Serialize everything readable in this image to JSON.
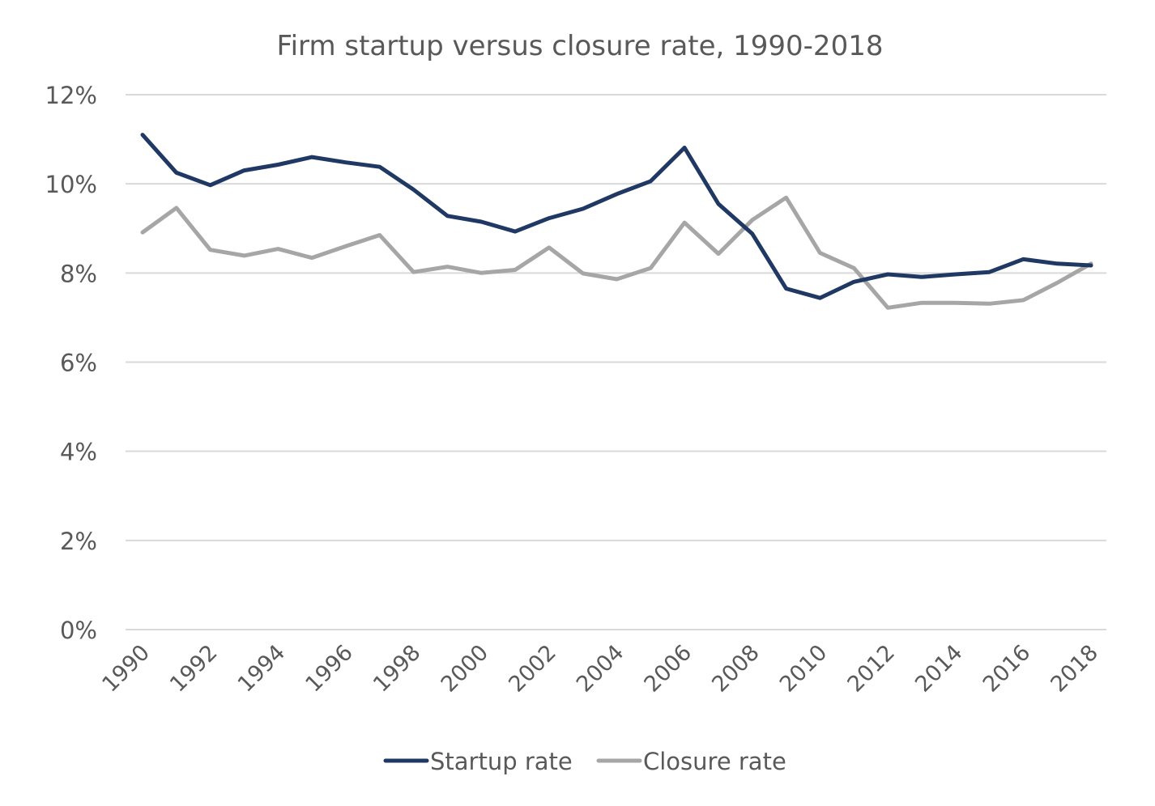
{
  "chart_data": {
    "type": "line",
    "title": "Firm startup versus closure rate, 1990-2018",
    "xlabel": "",
    "ylabel": "",
    "x": [
      1990,
      1991,
      1992,
      1993,
      1994,
      1995,
      1996,
      1997,
      1998,
      1999,
      2000,
      2001,
      2002,
      2003,
      2004,
      2005,
      2006,
      2007,
      2008,
      2009,
      2010,
      2011,
      2012,
      2013,
      2014,
      2015,
      2016,
      2017,
      2018
    ],
    "x_tick_labels": [
      "1990",
      "1992",
      "1994",
      "1996",
      "1998",
      "2000",
      "2002",
      "2004",
      "2006",
      "2008",
      "2010",
      "2012",
      "2014",
      "2016",
      "2018"
    ],
    "ylim": [
      0,
      12
    ],
    "y_ticks": [
      0,
      2,
      4,
      6,
      8,
      10,
      12
    ],
    "y_tick_labels": [
      "0%",
      "2%",
      "4%",
      "6%",
      "8%",
      "10%",
      "12%"
    ],
    "grid": true,
    "legend_position": "bottom",
    "series": [
      {
        "name": "Startup rate",
        "color": "#1f3864",
        "values": [
          11.1,
          10.25,
          9.97,
          10.3,
          10.43,
          10.6,
          10.48,
          10.38,
          9.87,
          9.28,
          9.15,
          8.93,
          9.23,
          9.44,
          9.77,
          10.06,
          10.81,
          9.55,
          8.88,
          7.65,
          7.44,
          7.8,
          7.97,
          7.91,
          7.97,
          8.02,
          8.31,
          8.21,
          8.17
        ]
      },
      {
        "name": "Closure rate",
        "color": "#a6a6a6",
        "values": [
          8.91,
          9.46,
          8.52,
          8.39,
          8.54,
          8.34,
          8.6,
          8.85,
          8.02,
          8.14,
          8.0,
          8.07,
          8.57,
          7.99,
          7.86,
          8.11,
          9.13,
          8.43,
          9.19,
          9.69,
          8.45,
          8.11,
          7.22,
          7.33,
          7.33,
          7.31,
          7.39,
          7.78,
          8.21
        ]
      }
    ]
  }
}
